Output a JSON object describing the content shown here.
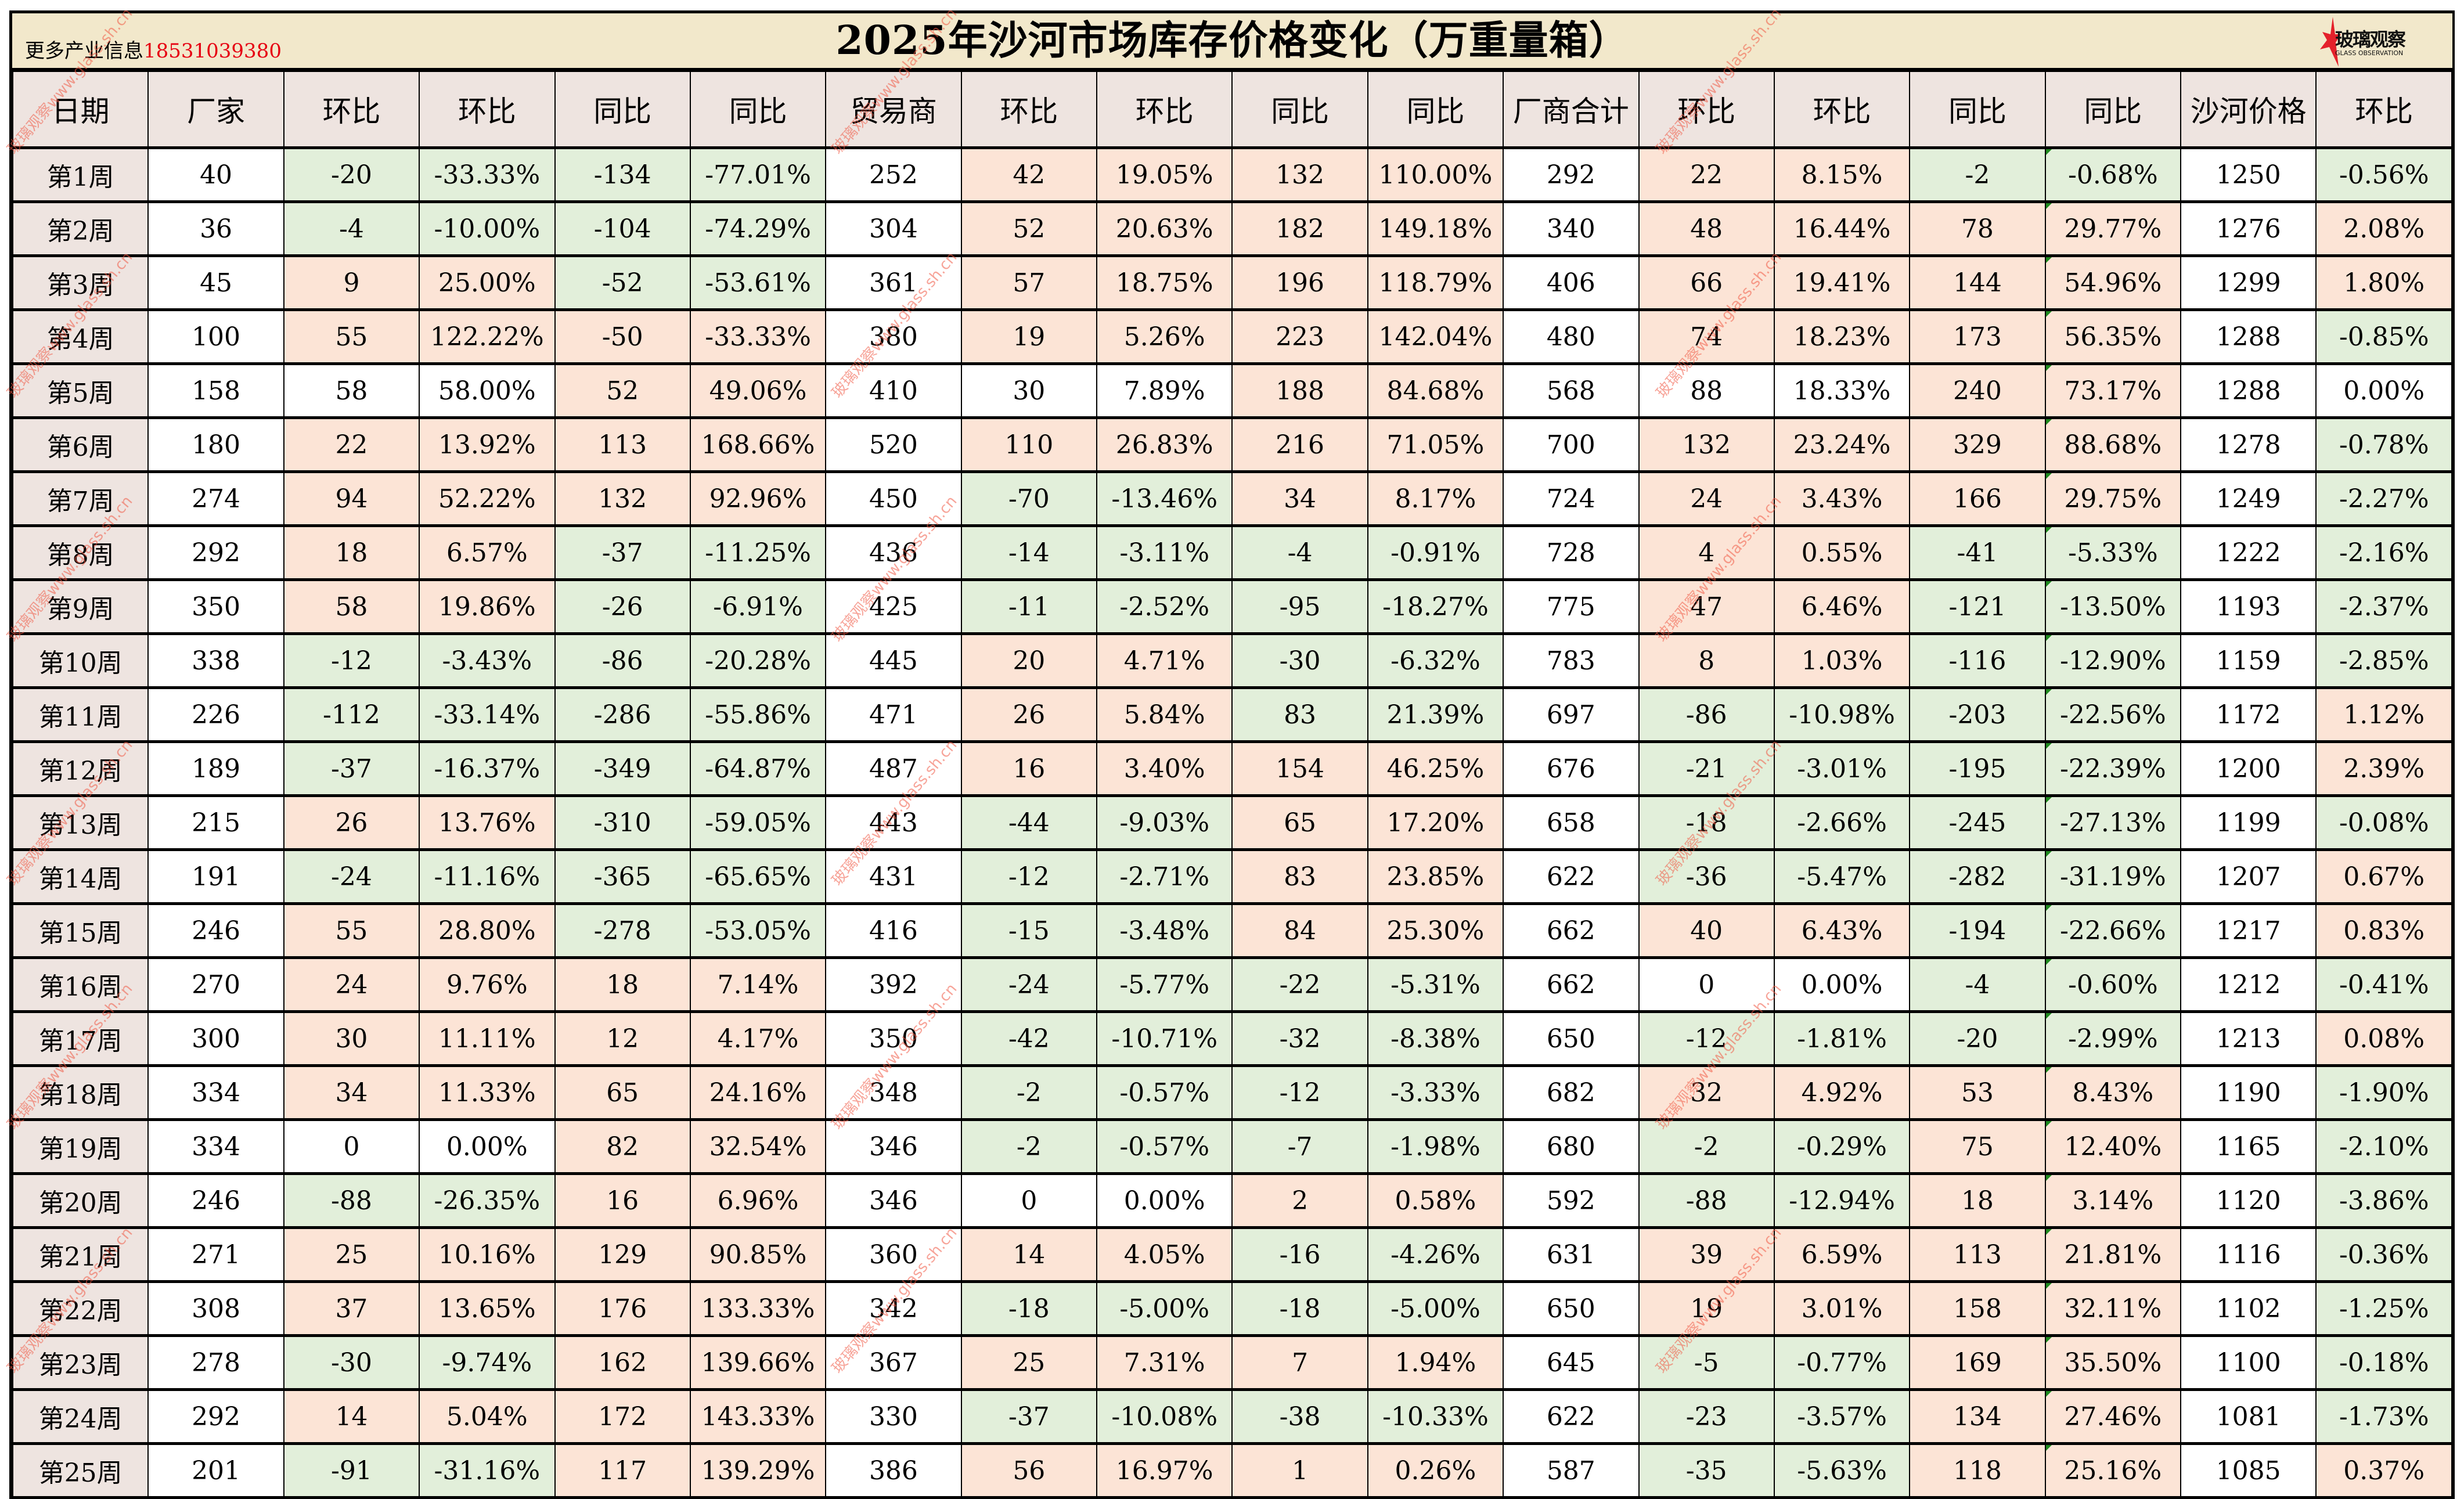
{
  "banner": {
    "info_label": "更多产业信息",
    "phone": "18531039380",
    "title": "2025年沙河市场库存价格变化（万重量箱）",
    "logo_cn": "玻璃观察",
    "logo_en": "GLASS OBSERVATION"
  },
  "watermark": "玻璃观察www.glass.sh.cn",
  "colors": {
    "positive": "#FCE4D6",
    "negative": "#E2EFDA",
    "neutral": "#FFFFFF",
    "header": "#EEE4E0",
    "banner": "#F2E8CB",
    "phone": "#E60012"
  },
  "headers": [
    "日期",
    "厂家",
    "环比",
    "环比",
    "同比",
    "同比",
    "贸易商",
    "环比",
    "环比",
    "同比",
    "同比",
    "厂商合计",
    "环比",
    "环比",
    "同比",
    "同比",
    "沙河价格",
    "环比"
  ],
  "rows": [
    {
      "c": [
        "第1周",
        "40",
        "-20",
        "-33.33%",
        "-134",
        "-77.01%",
        "252",
        "42",
        "19.05%",
        "132",
        "110.00%",
        "292",
        "22",
        "8.15%",
        "-2",
        "-0.68%",
        "1250",
        "-0.56%"
      ],
      "k": "dwggggwppppwppggwg"
    },
    {
      "c": [
        "第2周",
        "36",
        "-4",
        "-10.00%",
        "-104",
        "-74.29%",
        "304",
        "52",
        "20.63%",
        "182",
        "149.18%",
        "340",
        "48",
        "16.44%",
        "78",
        "29.77%",
        "1276",
        "2.08%"
      ],
      "k": "dwggggwppppwppppwp"
    },
    {
      "c": [
        "第3周",
        "45",
        "9",
        "25.00%",
        "-52",
        "-53.61%",
        "361",
        "57",
        "18.75%",
        "196",
        "118.79%",
        "406",
        "66",
        "19.41%",
        "144",
        "54.96%",
        "1299",
        "1.80%"
      ],
      "k": "dwppggwppppwppppwp"
    },
    {
      "c": [
        "第4周",
        "100",
        "55",
        "122.22%",
        "-50",
        "-33.33%",
        "380",
        "19",
        "5.26%",
        "223",
        "142.04%",
        "480",
        "74",
        "18.23%",
        "173",
        "56.35%",
        "1288",
        "-0.85%"
      ],
      "k": "dwpppp wppppwppppwg"
    },
    {
      "c": [
        "第5周",
        "158",
        "58",
        "58.00%",
        "52",
        "49.06%",
        "410",
        "30",
        "7.89%",
        "188",
        "84.68%",
        "568",
        "88",
        "18.33%",
        "240",
        "73.17%",
        "1288",
        "0.00%"
      ],
      "k": "dwwwppwwwppwwwppww"
    },
    {
      "c": [
        "第6周",
        "180",
        "22",
        "13.92%",
        "113",
        "168.66%",
        "520",
        "110",
        "26.83%",
        "216",
        "71.05%",
        "700",
        "132",
        "23.24%",
        "329",
        "88.68%",
        "1278",
        "-0.78%"
      ],
      "k": "dwppppwppppwppppwg"
    },
    {
      "c": [
        "第7周",
        "274",
        "94",
        "52.22%",
        "132",
        "92.96%",
        "450",
        "-70",
        "-13.46%",
        "34",
        "8.17%",
        "724",
        "24",
        "3.43%",
        "166",
        "29.75%",
        "1249",
        "-2.27%"
      ],
      "k": "dwppppwggppwppppwg"
    },
    {
      "c": [
        "第8周",
        "292",
        "18",
        "6.57%",
        "-37",
        "-11.25%",
        "436",
        "-14",
        "-3.11%",
        "-4",
        "-0.91%",
        "728",
        "4",
        "0.55%",
        "-41",
        "-5.33%",
        "1222",
        "-2.16%"
      ],
      "k": "dwppggwggggwppggwg"
    },
    {
      "c": [
        "第9周",
        "350",
        "58",
        "19.86%",
        "-26",
        "-6.91%",
        "425",
        "-11",
        "-2.52%",
        "-95",
        "-18.27%",
        "775",
        "47",
        "6.46%",
        "-121",
        "-13.50%",
        "1193",
        "-2.37%"
      ],
      "k": "dwppggwggggwppggwg"
    },
    {
      "c": [
        "第10周",
        "338",
        "-12",
        "-3.43%",
        "-86",
        "-20.28%",
        "445",
        "20",
        "4.71%",
        "-30",
        "-6.32%",
        "783",
        "8",
        "1.03%",
        "-116",
        "-12.90%",
        "1159",
        "-2.85%"
      ],
      "k": "dwggggwppggwppggwg"
    },
    {
      "c": [
        "第11周",
        "226",
        "-112",
        "-33.14%",
        "-286",
        "-55.86%",
        "471",
        "26",
        "5.84%",
        "83",
        "21.39%",
        "697",
        "-86",
        "-10.98%",
        "-203",
        "-22.56%",
        "1172",
        "1.12%"
      ],
      "k": "dwggggwppggwggggwp"
    },
    {
      "c": [
        "第12周",
        "189",
        "-37",
        "-16.37%",
        "-349",
        "-64.87%",
        "487",
        "16",
        "3.40%",
        "154",
        "46.25%",
        "676",
        "-21",
        "-3.01%",
        "-195",
        "-22.39%",
        "1200",
        "2.39%"
      ],
      "k": "dwggggwppppwggggwp"
    },
    {
      "c": [
        "第13周",
        "215",
        "26",
        "13.76%",
        "-310",
        "-59.05%",
        "443",
        "-44",
        "-9.03%",
        "65",
        "17.20%",
        "658",
        "-18",
        "-2.66%",
        "-245",
        "-27.13%",
        "1199",
        "-0.08%"
      ],
      "k": "dwppggwggppwggggwg"
    },
    {
      "c": [
        "第14周",
        "191",
        "-24",
        "-11.16%",
        "-365",
        "-65.65%",
        "431",
        "-12",
        "-2.71%",
        "83",
        "23.85%",
        "622",
        "-36",
        "-5.47%",
        "-282",
        "-31.19%",
        "1207",
        "0.67%"
      ],
      "k": "dwggggwggppwggggwp"
    },
    {
      "c": [
        "第15周",
        "246",
        "55",
        "28.80%",
        "-278",
        "-53.05%",
        "416",
        "-15",
        "-3.48%",
        "84",
        "25.30%",
        "662",
        "40",
        "6.43%",
        "-194",
        "-22.66%",
        "1217",
        "0.83%"
      ],
      "k": "dwppggwggppwppggwp"
    },
    {
      "c": [
        "第16周",
        "270",
        "24",
        "9.76%",
        "18",
        "7.14%",
        "392",
        "-24",
        "-5.77%",
        "-22",
        "-5.31%",
        "662",
        "0",
        "0.00%",
        "-4",
        "-0.60%",
        "1212",
        "-0.41%"
      ],
      "k": "dwppppwggggwwwggwg"
    },
    {
      "c": [
        "第17周",
        "300",
        "30",
        "11.11%",
        "12",
        "4.17%",
        "350",
        "-42",
        "-10.71%",
        "-32",
        "-8.38%",
        "650",
        "-12",
        "-1.81%",
        "-20",
        "-2.99%",
        "1213",
        "0.08%"
      ],
      "k": "dwppppwggggwggggwp"
    },
    {
      "c": [
        "第18周",
        "334",
        "34",
        "11.33%",
        "65",
        "24.16%",
        "348",
        "-2",
        "-0.57%",
        "-12",
        "-3.33%",
        "682",
        "32",
        "4.92%",
        "53",
        "8.43%",
        "1190",
        "-1.90%"
      ],
      "k": "dwppppwggggwppppwg"
    },
    {
      "c": [
        "第19周",
        "334",
        "0",
        "0.00%",
        "82",
        "32.54%",
        "346",
        "-2",
        "-0.57%",
        "-7",
        "-1.98%",
        "680",
        "-2",
        "-0.29%",
        "75",
        "12.40%",
        "1165",
        "-2.10%"
      ],
      "k": "dwwwppwggggwggppwg"
    },
    {
      "c": [
        "第20周",
        "246",
        "-88",
        "-26.35%",
        "16",
        "6.96%",
        "346",
        "0",
        "0.00%",
        "2",
        "0.58%",
        "592",
        "-88",
        "-12.94%",
        "18",
        "3.14%",
        "1120",
        "-3.86%"
      ],
      "k": "dwggppwwwppwggppwg"
    },
    {
      "c": [
        "第21周",
        "271",
        "25",
        "10.16%",
        "129",
        "90.85%",
        "360",
        "14",
        "4.05%",
        "-16",
        "-4.26%",
        "631",
        "39",
        "6.59%",
        "113",
        "21.81%",
        "1116",
        "-0.36%"
      ],
      "k": "dwppppwppggwppppwg"
    },
    {
      "c": [
        "第22周",
        "308",
        "37",
        "13.65%",
        "176",
        "133.33%",
        "342",
        "-18",
        "-5.00%",
        "-18",
        "-5.00%",
        "650",
        "19",
        "3.01%",
        "158",
        "32.11%",
        "1102",
        "-1.25%"
      ],
      "k": "dwppppwggggwppppwg"
    },
    {
      "c": [
        "第23周",
        "278",
        "-30",
        "-9.74%",
        "162",
        "139.66%",
        "367",
        "25",
        "7.31%",
        "7",
        "1.94%",
        "645",
        "-5",
        "-0.77%",
        "169",
        "35.50%",
        "1100",
        "-0.18%"
      ],
      "k": "dwggppwppppwggppwg"
    },
    {
      "c": [
        "第24周",
        "292",
        "14",
        "5.04%",
        "172",
        "143.33%",
        "330",
        "-37",
        "-10.08%",
        "-38",
        "-10.33%",
        "622",
        "-23",
        "-3.57%",
        "134",
        "27.46%",
        "1081",
        "-1.73%"
      ],
      "k": "dwppppwggggwggppwg"
    },
    {
      "c": [
        "第25周",
        "201",
        "-91",
        "-31.16%",
        "117",
        "139.29%",
        "386",
        "56",
        "16.97%",
        "1",
        "0.26%",
        "587",
        "-35",
        "-5.63%",
        "118",
        "25.16%",
        "1085",
        "0.37%"
      ],
      "k": "dwggppwppppwggppwp"
    }
  ]
}
